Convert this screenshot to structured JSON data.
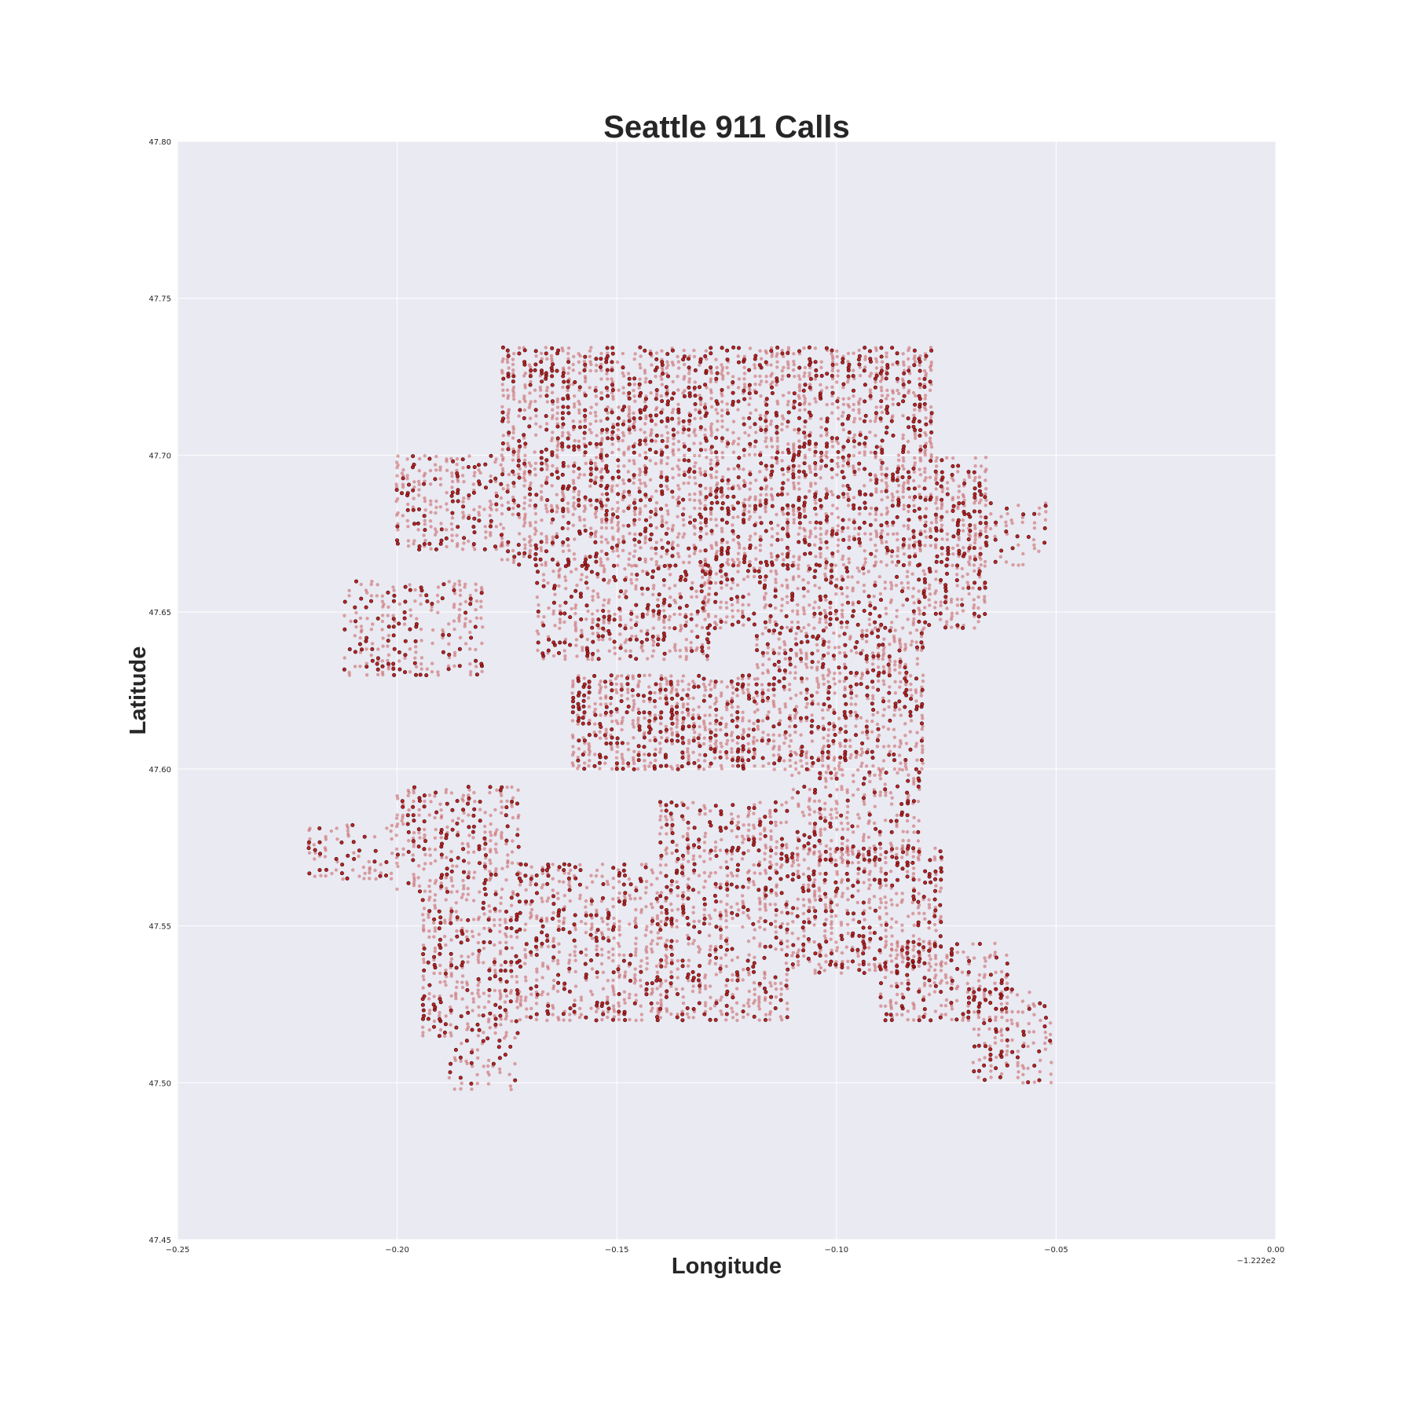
{
  "chart_data": {
    "type": "scatter",
    "title": "Seattle 911 Calls",
    "xlabel": "Longitude",
    "ylabel": "Latitude",
    "x_offset_label": "−1.222e2",
    "xlim": [
      -0.25,
      0.0
    ],
    "ylim": [
      47.45,
      47.8
    ],
    "x_ticks": [
      -0.25,
      -0.2,
      -0.15,
      -0.1,
      -0.05,
      0.0
    ],
    "x_tick_labels": [
      "−0.25",
      "−0.20",
      "−0.15",
      "−0.10",
      "−0.05",
      "0.00"
    ],
    "y_ticks": [
      47.45,
      47.5,
      47.55,
      47.6,
      47.65,
      47.7,
      47.75,
      47.8
    ],
    "y_tick_labels": [
      "47.45",
      "47.50",
      "47.55",
      "47.60",
      "47.65",
      "47.70",
      "47.75",
      "47.80"
    ],
    "grid": true,
    "background_color": "#eaeaf2",
    "marker_color": "#b10f0f",
    "marker_edge_color": "#3a0000",
    "regions": [
      {
        "x": [
          -0.176,
          -0.078
        ],
        "y": [
          47.7,
          47.735
        ],
        "density": 0.1
      },
      {
        "x": [
          -0.2,
          -0.176
        ],
        "y": [
          47.67,
          47.7
        ],
        "density": 0.08
      },
      {
        "x": [
          -0.176,
          -0.065
        ],
        "y": [
          47.665,
          47.7
        ],
        "density": 0.1
      },
      {
        "x": [
          -0.13,
          -0.065
        ],
        "y": [
          47.645,
          47.665
        ],
        "density": 0.08
      },
      {
        "x": [
          -0.065,
          -0.052
        ],
        "y": [
          47.665,
          47.685
        ],
        "density": 0.05
      },
      {
        "x": [
          -0.212,
          -0.18
        ],
        "y": [
          47.63,
          47.66
        ],
        "density": 0.07
      },
      {
        "x": [
          -0.168,
          -0.128
        ],
        "y": [
          47.635,
          47.665
        ],
        "density": 0.08
      },
      {
        "x": [
          -0.16,
          -0.118
        ],
        "y": [
          47.6,
          47.63
        ],
        "density": 0.12
      },
      {
        "x": [
          -0.118,
          -0.08
        ],
        "y": [
          47.6,
          47.645
        ],
        "density": 0.09
      },
      {
        "x": [
          -0.11,
          -0.08
        ],
        "y": [
          47.57,
          47.6
        ],
        "density": 0.08
      },
      {
        "x": [
          -0.2,
          -0.172
        ],
        "y": [
          47.56,
          47.595
        ],
        "density": 0.08
      },
      {
        "x": [
          -0.194,
          -0.172
        ],
        "y": [
          47.515,
          47.56
        ],
        "density": 0.08
      },
      {
        "x": [
          -0.188,
          -0.172
        ],
        "y": [
          47.498,
          47.515
        ],
        "density": 0.05
      },
      {
        "x": [
          -0.22,
          -0.2
        ],
        "y": [
          47.565,
          47.583
        ],
        "density": 0.05
      },
      {
        "x": [
          -0.172,
          -0.14
        ],
        "y": [
          47.52,
          47.57
        ],
        "density": 0.08
      },
      {
        "x": [
          -0.14,
          -0.11
        ],
        "y": [
          47.52,
          47.59
        ],
        "density": 0.08
      },
      {
        "x": [
          -0.11,
          -0.075
        ],
        "y": [
          47.535,
          47.575
        ],
        "density": 0.09
      },
      {
        "x": [
          -0.09,
          -0.06
        ],
        "y": [
          47.52,
          47.545
        ],
        "density": 0.08
      },
      {
        "x": [
          -0.07,
          -0.05
        ],
        "y": [
          47.5,
          47.53
        ],
        "density": 0.06
      }
    ]
  }
}
